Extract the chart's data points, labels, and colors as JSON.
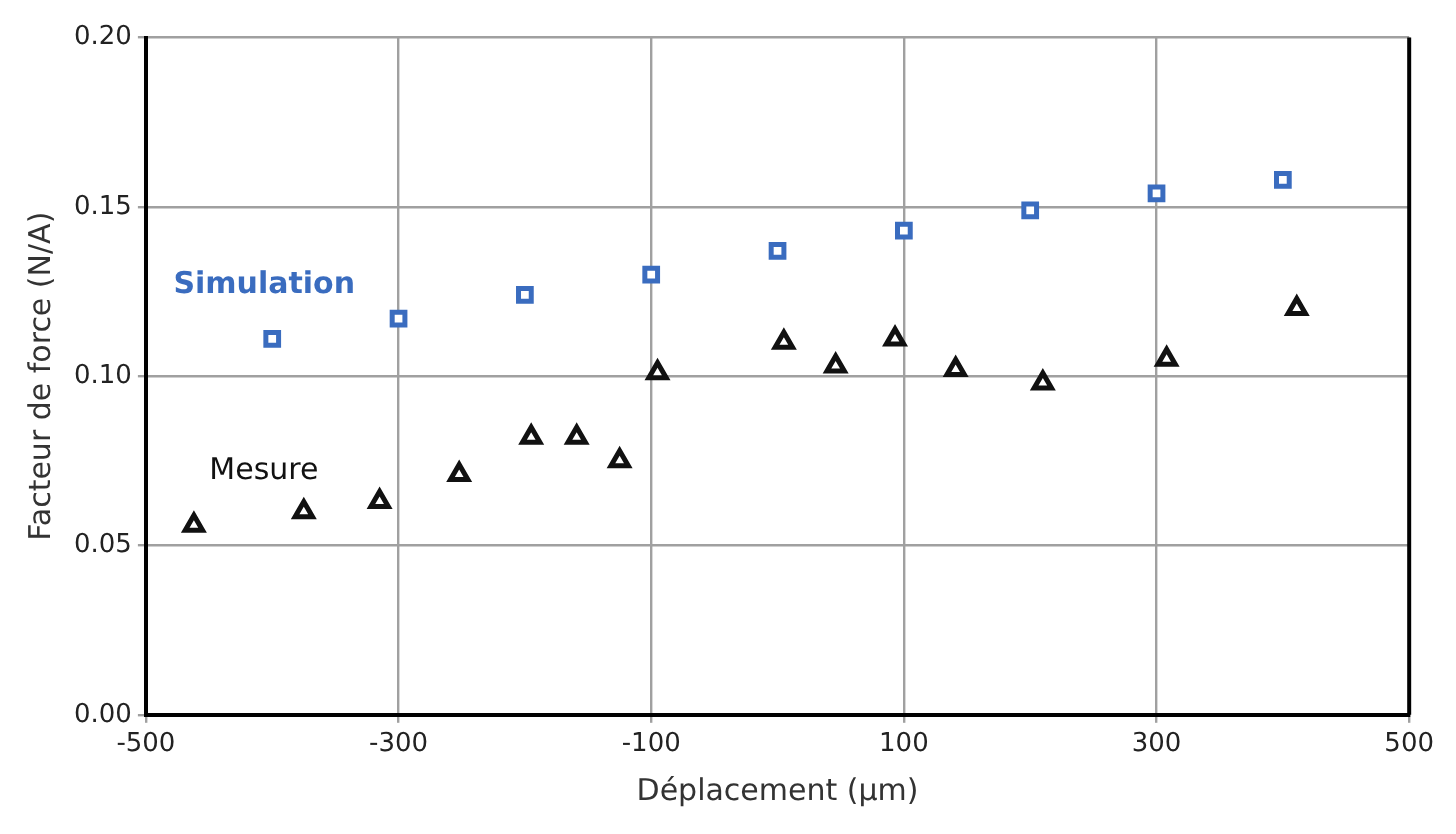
{
  "chart_data": {
    "type": "scatter",
    "xlabel": "Déplacement (µm)",
    "ylabel": "Facteur de force (N/A)",
    "xlim": [
      -500,
      500
    ],
    "xticks": [
      -500,
      -300,
      -100,
      100,
      300,
      500
    ],
    "ylim": [
      0,
      0.2
    ],
    "yticks": [
      {
        "value": 0,
        "label": "0.00"
      },
      {
        "value": 0.05,
        "label": "0.05"
      },
      {
        "value": 0.1,
        "label": "0.10"
      },
      {
        "value": 0.15,
        "label": "0.15"
      },
      {
        "value": 0.2,
        "label": "0.20"
      }
    ],
    "grid": true,
    "legend": false,
    "series": [
      {
        "name": "Simulation",
        "color": "#3a6cbf",
        "marker": "square",
        "x": [
          -400,
          -300,
          -200,
          -100,
          0,
          100,
          200,
          300,
          400
        ],
        "values": [
          0.111,
          0.117,
          0.124,
          0.13,
          0.137,
          0.143,
          0.149,
          0.154,
          0.158
        ]
      },
      {
        "name": "Mesure",
        "color": "#111111",
        "marker": "triangle",
        "x": [
          -462,
          -375,
          -315,
          -252,
          -195,
          -159,
          -125,
          -95,
          5,
          46,
          93,
          141,
          210,
          308,
          411
        ],
        "values": [
          0.056,
          0.06,
          0.063,
          0.071,
          0.082,
          0.082,
          0.075,
          0.101,
          0.11,
          0.103,
          0.111,
          0.102,
          0.098,
          0.105,
          0.12
        ]
      }
    ]
  }
}
